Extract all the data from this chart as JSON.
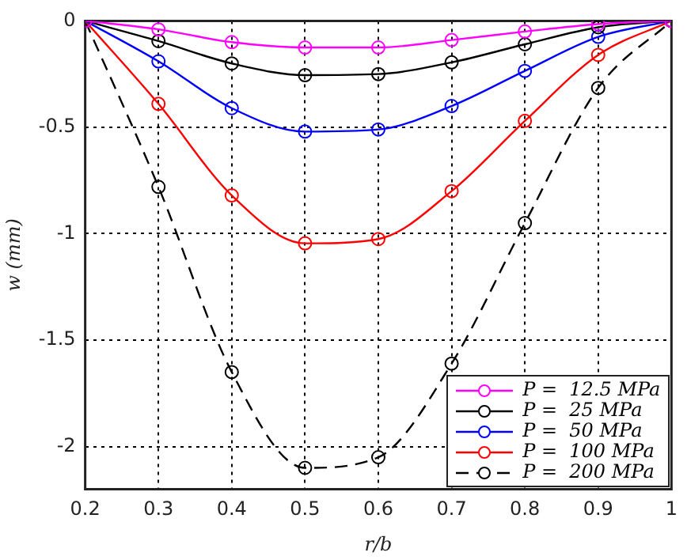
{
  "chart_data": {
    "type": "line",
    "xlabel": "r/b",
    "ylabel": "w (mm)",
    "x": [
      0.2,
      0.3,
      0.4,
      0.5,
      0.6,
      0.7,
      0.8,
      0.9,
      1
    ],
    "series": [
      {
        "name": "P =  12.5 MPa",
        "color": "#ff00ff",
        "values": [
          0,
          -0.04,
          -0.1,
          -0.125,
          -0.125,
          -0.09,
          -0.05,
          -0.015,
          0
        ]
      },
      {
        "name": "P =  25 MPa",
        "color": "#000000",
        "values": [
          0,
          -0.095,
          -0.2,
          -0.255,
          -0.25,
          -0.195,
          -0.11,
          -0.03,
          0
        ]
      },
      {
        "name": "P =  50 MPa",
        "color": "#0000ff",
        "values": [
          0,
          -0.19,
          -0.41,
          -0.52,
          -0.51,
          -0.4,
          -0.235,
          -0.075,
          0
        ]
      },
      {
        "name": "P =  100 MPa",
        "color": "#ff0000",
        "values": [
          0,
          -0.39,
          -0.82,
          -1.045,
          -1.025,
          -0.8,
          -0.47,
          -0.16,
          0
        ]
      },
      {
        "name": "P =  200 MPa",
        "color": "#000000",
        "line_style": "dashed",
        "values": [
          0,
          -0.78,
          -1.65,
          -2.1,
          -2.05,
          -1.61,
          -0.95,
          -0.315,
          0
        ]
      }
    ],
    "xlim": [
      0.2,
      1
    ],
    "xticks": [
      0.2,
      0.3,
      0.4,
      0.5,
      0.6,
      0.7,
      0.8,
      0.9,
      1
    ],
    "ylim": [
      -2.2,
      0
    ],
    "yticks": [
      -2,
      -1.5,
      -1,
      -0.5,
      0
    ],
    "grid": true,
    "legend": "bottom right",
    "marker": "circle",
    "line_style": "solid"
  }
}
